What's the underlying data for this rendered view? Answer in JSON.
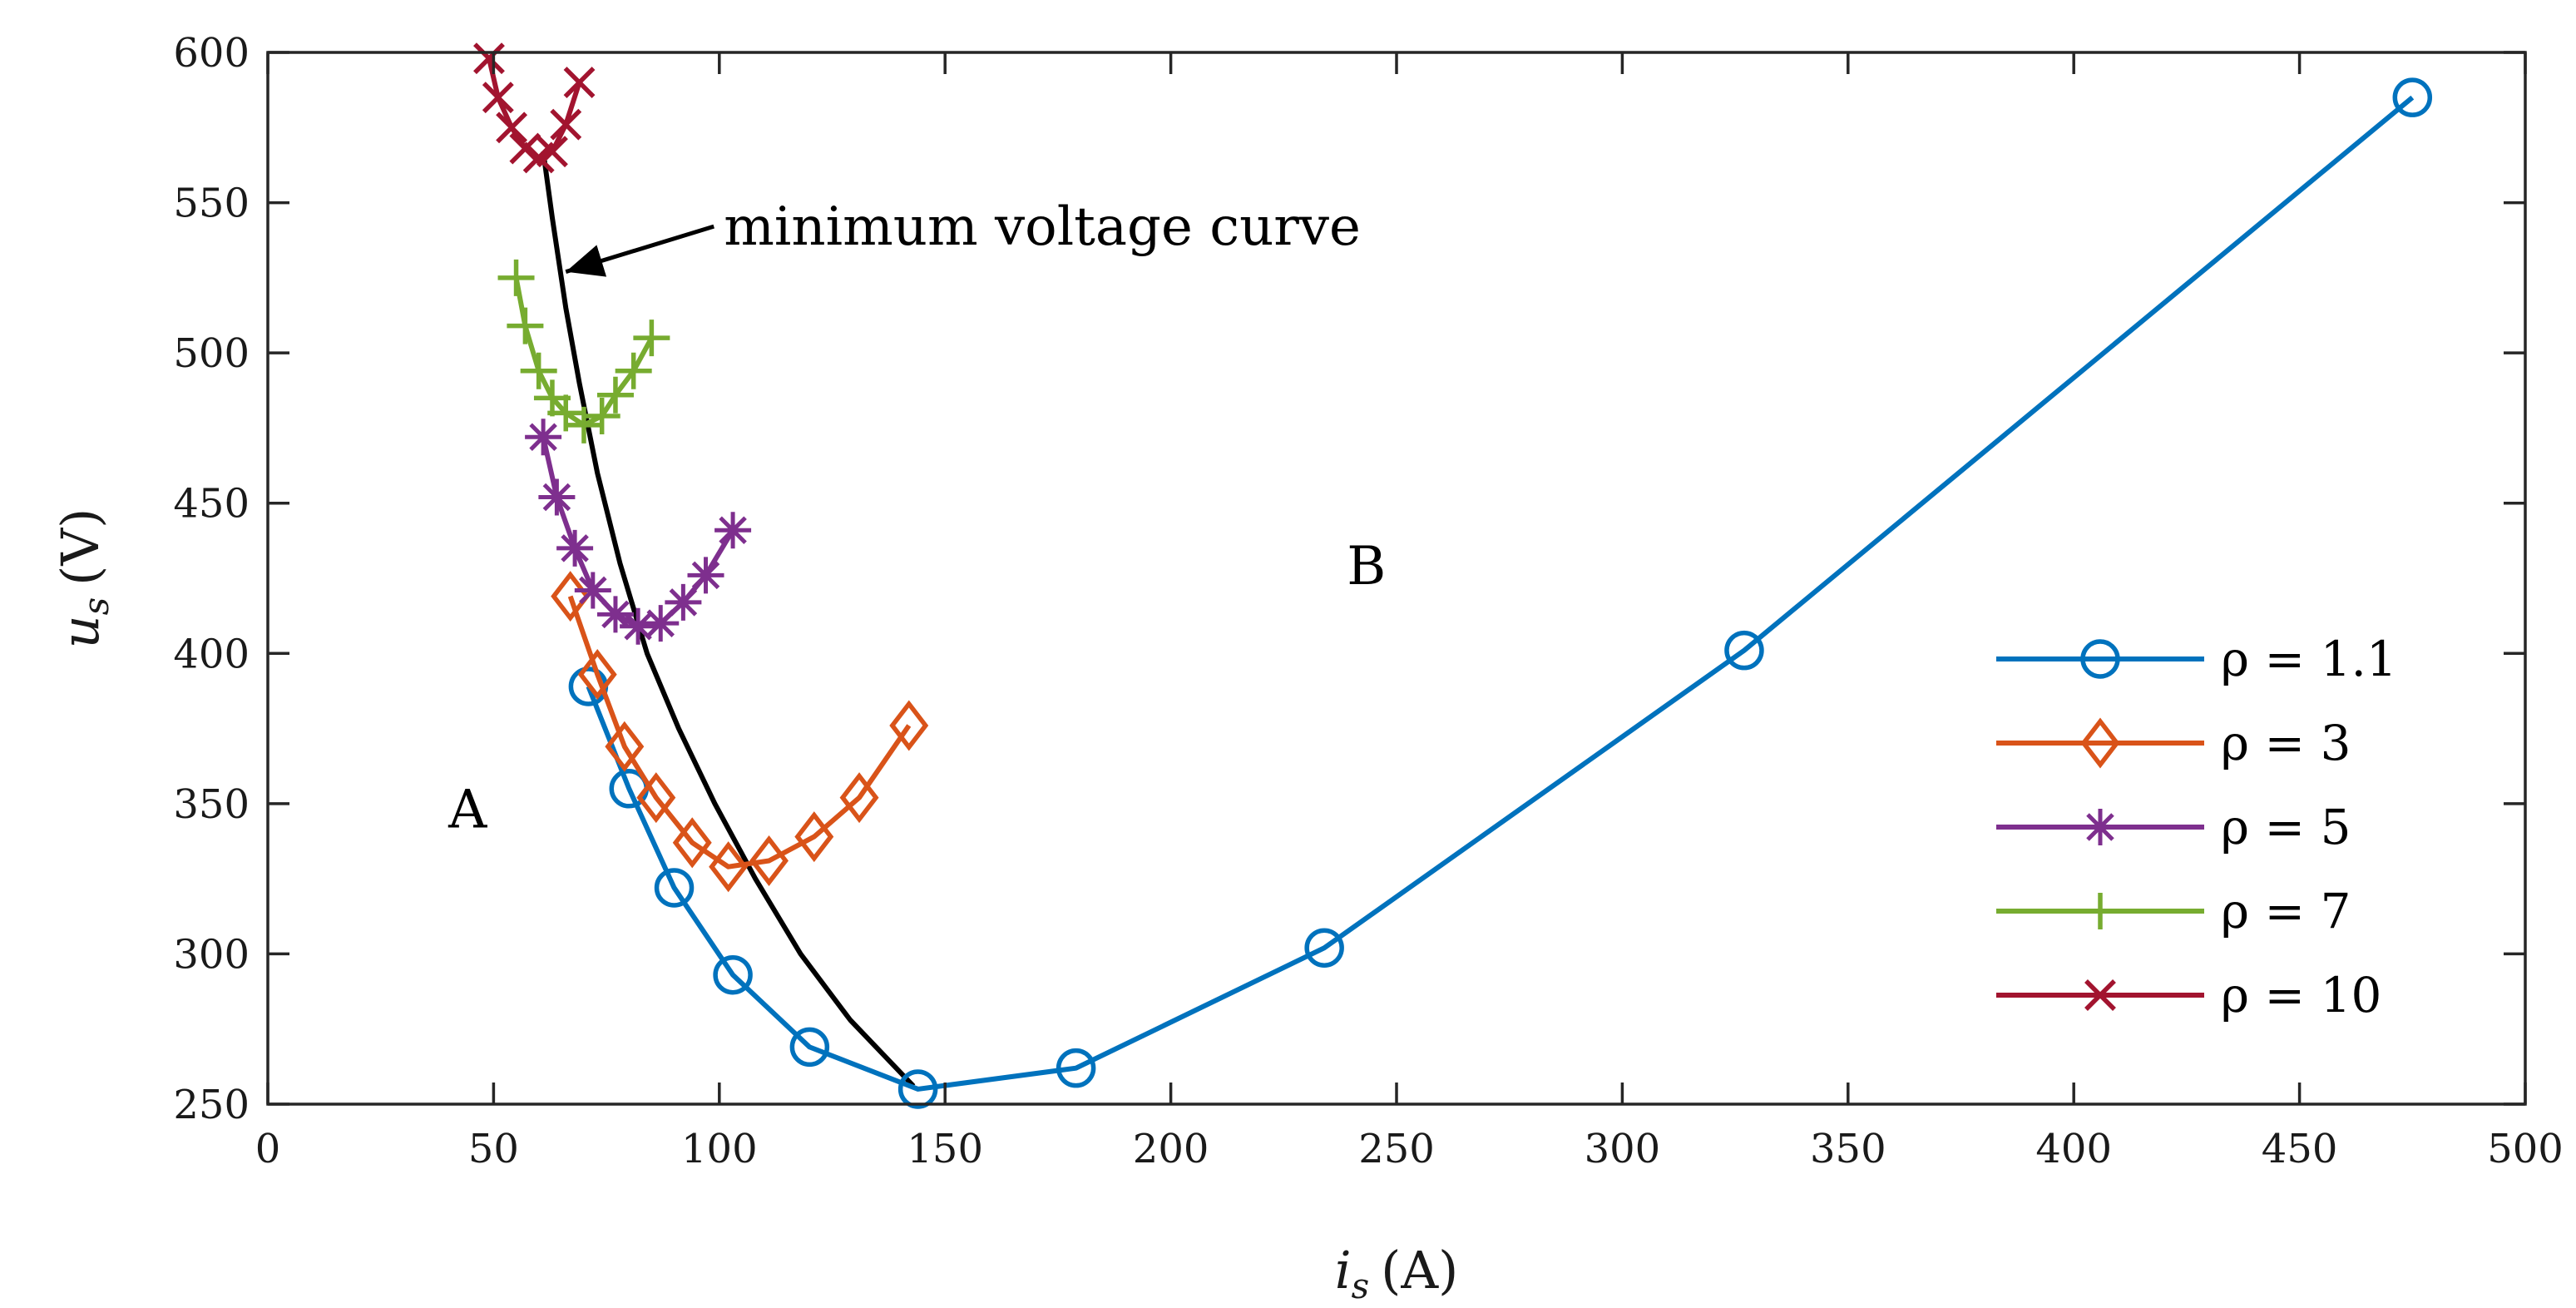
{
  "chart_data": {
    "type": "line",
    "title": "",
    "xlabel": {
      "var": "i",
      "sub": "s",
      "unit": "(A)"
    },
    "ylabel": {
      "var": "u",
      "sub": "s",
      "unit": "(V)"
    },
    "xlim": [
      0,
      500
    ],
    "ylim": [
      250,
      600
    ],
    "xticks": [
      0,
      50,
      100,
      150,
      200,
      250,
      300,
      350,
      400,
      450,
      500
    ],
    "yticks": [
      250,
      300,
      350,
      400,
      450,
      500,
      550,
      600
    ],
    "grid": false,
    "legend_position": "bottom-right",
    "series": [
      {
        "name": "ρ = 1.1",
        "color": "#0072BD",
        "marker": "circle",
        "x": [
          71,
          80,
          90,
          103,
          120,
          144,
          179,
          234,
          327,
          475
        ],
        "y": [
          389,
          355,
          322,
          293,
          269,
          255,
          262,
          302,
          401,
          585
        ]
      },
      {
        "name": "ρ = 3",
        "color": "#D95319",
        "marker": "diamond",
        "x": [
          67,
          73,
          79,
          86,
          94,
          102,
          111,
          121,
          131,
          142
        ],
        "y": [
          419,
          393,
          369,
          352,
          337,
          329,
          331,
          339,
          352,
          376
        ]
      },
      {
        "name": "ρ = 5",
        "color": "#7E2F8E",
        "marker": "asterisk",
        "x": [
          61,
          64,
          68,
          72,
          77,
          82,
          87,
          92,
          97,
          103
        ],
        "y": [
          472,
          452,
          435,
          421,
          413,
          409,
          410,
          417,
          426,
          441
        ]
      },
      {
        "name": "ρ = 7",
        "color": "#77AC30",
        "marker": "plus",
        "x": [
          55,
          57,
          60,
          63,
          66,
          70,
          74,
          77,
          81,
          85
        ],
        "y": [
          525,
          509,
          494,
          485,
          480,
          476,
          479,
          486,
          494,
          505
        ]
      },
      {
        "name": "ρ = 10",
        "color": "#A2142F",
        "marker": "cross",
        "x": [
          49,
          51,
          54,
          57,
          60,
          63,
          66,
          69
        ],
        "y": [
          598,
          585,
          575,
          568,
          565,
          567,
          576,
          590
        ]
      }
    ],
    "curve": {
      "name": "minimum voltage curve",
      "color": "#000000",
      "x": [
        61,
        63,
        66,
        69,
        73,
        78,
        84,
        91,
        99,
        108,
        118,
        129,
        143
      ],
      "y": [
        567,
        545,
        515,
        490,
        460,
        430,
        400,
        375,
        350,
        325,
        300,
        278,
        256
      ]
    },
    "annotations": [
      {
        "text": "minimum voltage curve",
        "x": 101,
        "y": 536,
        "arrow_to": [
          66,
          527
        ]
      },
      {
        "text": "A",
        "x": 40,
        "y": 342
      },
      {
        "text": "B",
        "x": 239,
        "y": 423
      }
    ]
  }
}
